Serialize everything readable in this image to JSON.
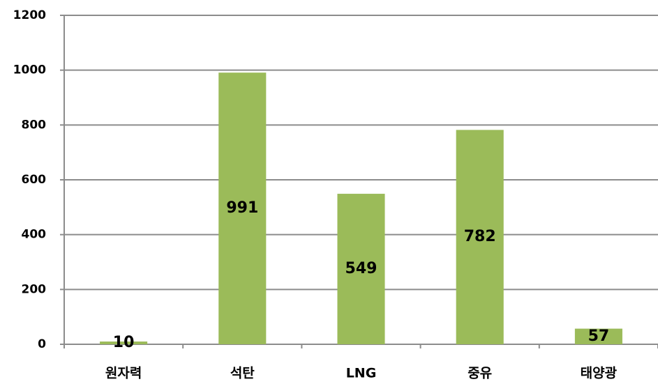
{
  "chart_data": {
    "type": "bar",
    "categories": [
      "원자력",
      "석탄",
      "LNG",
      "중유",
      "태양광"
    ],
    "values": [
      10,
      991,
      549,
      782,
      57
    ],
    "color": "#9bbb59",
    "ylim": [
      0,
      1200
    ],
    "yticks": [
      0,
      200,
      400,
      600,
      800,
      1000,
      1200
    ],
    "grid": true
  }
}
